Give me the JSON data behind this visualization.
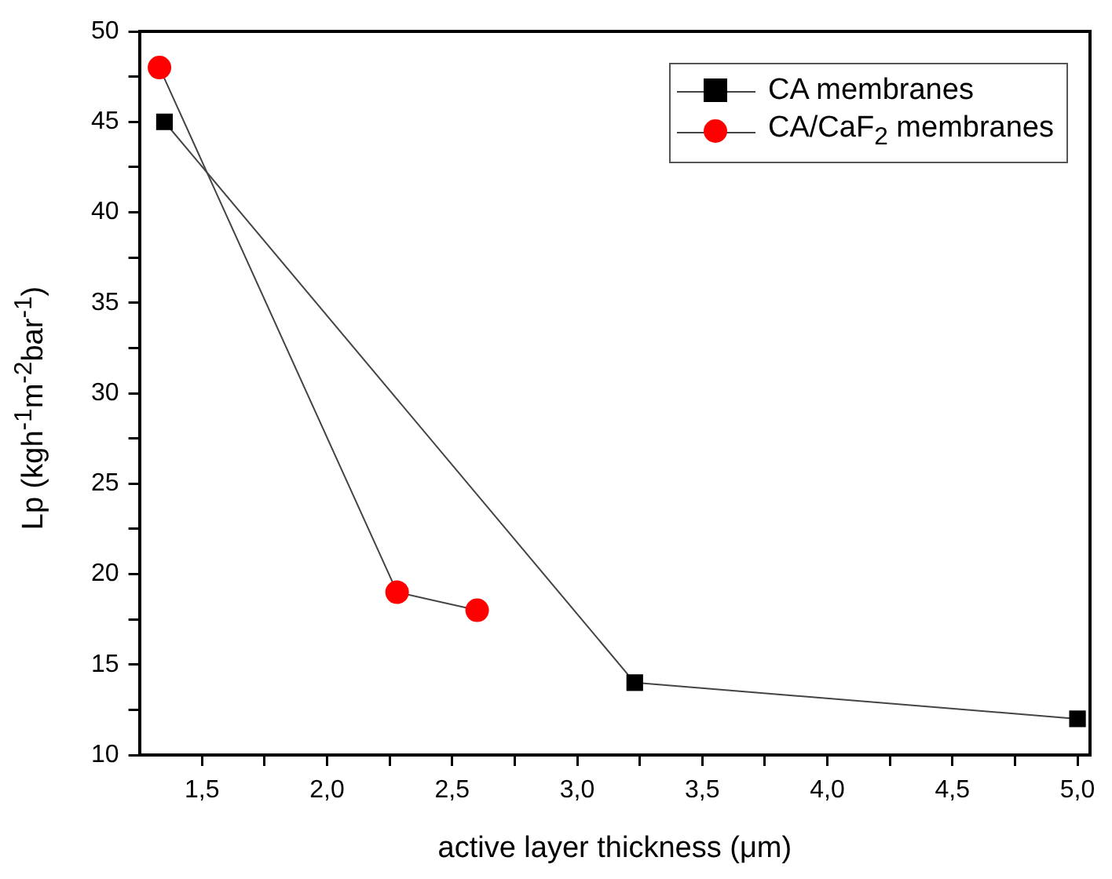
{
  "chart_data": {
    "type": "line",
    "xlabel": "active layer thickness (μm)",
    "ylabel": "Lp (kgh$^{-1}$m$^{-2}$bar$^{-1}$)",
    "xlim": [
      1.25,
      5.05
    ],
    "ylim": [
      10,
      50
    ],
    "xticks": [
      {
        "value": 1.5,
        "label": "1,5"
      },
      {
        "value": 1.75,
        "label": null
      },
      {
        "value": 2.0,
        "label": "2,0"
      },
      {
        "value": 2.25,
        "label": null
      },
      {
        "value": 2.5,
        "label": "2,5"
      },
      {
        "value": 2.75,
        "label": null
      },
      {
        "value": 3.0,
        "label": "3,0"
      },
      {
        "value": 3.25,
        "label": null
      },
      {
        "value": 3.5,
        "label": "3,5"
      },
      {
        "value": 3.75,
        "label": null
      },
      {
        "value": 4.0,
        "label": "4,0"
      },
      {
        "value": 4.25,
        "label": null
      },
      {
        "value": 4.5,
        "label": "4,5"
      },
      {
        "value": 4.75,
        "label": null
      },
      {
        "value": 5.0,
        "label": "5,0"
      }
    ],
    "yticks": [
      10,
      {
        "value": 12.5,
        "label": null
      },
      15,
      {
        "value": 17.5,
        "label": null
      },
      20,
      {
        "value": 22.5,
        "label": null
      },
      25,
      {
        "value": 27.5,
        "label": null
      },
      30,
      {
        "value": 32.5,
        "label": null
      },
      35,
      {
        "value": 37.5,
        "label": null
      },
      40,
      {
        "value": 42.5,
        "label": null
      },
      45,
      {
        "value": 47.5,
        "label": null
      },
      50
    ],
    "grid": false,
    "legend": "top right",
    "line_style": "solid",
    "series": [
      {
        "name": "CA membranes",
        "color": "#000000",
        "marker": "square",
        "x": [
          1.35,
          3.23,
          5.0
        ],
        "values": [
          45,
          14,
          12
        ]
      },
      {
        "name": "CA/CaF$_{2}$ membranes",
        "color": "#ff0000",
        "marker": "circle",
        "x": [
          1.33,
          2.28,
          2.6
        ],
        "values": [
          48,
          19,
          18
        ]
      }
    ]
  }
}
